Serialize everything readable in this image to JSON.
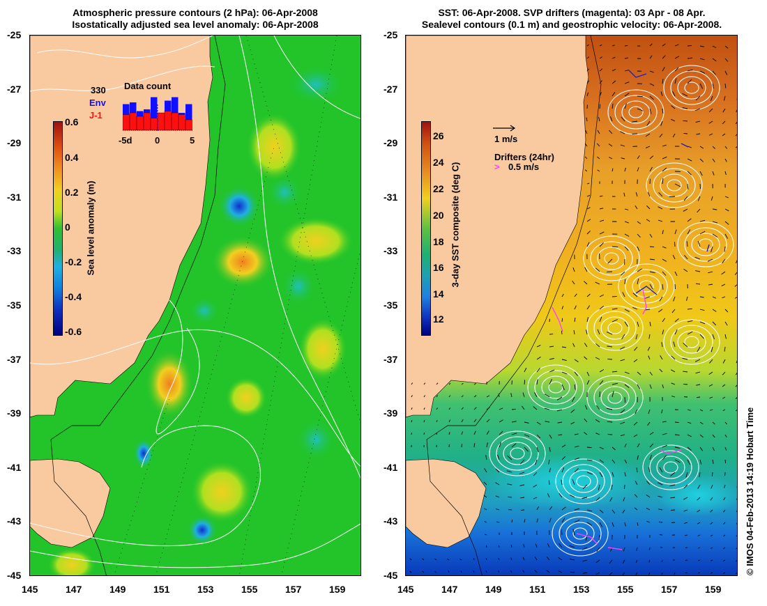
{
  "left_panel": {
    "title_line1": "Atmospheric pressure contours (2 hPa): 06-Apr-2008",
    "title_line2": "Isostatically adjusted sea level anomaly: 06-Apr-2008",
    "colorbar": {
      "label": "Sea level anomaly (m)",
      "ticks": [
        "0.6",
        "0.4",
        "0.2",
        "0",
        "-0.2",
        "-0.4",
        "-0.6"
      ]
    },
    "inset": {
      "count": "330",
      "series1": "Env",
      "series2": "J-1",
      "title": "Data count",
      "xticks": [
        "-5d",
        "0",
        "5"
      ],
      "env_colour": "#1010ff",
      "j1_colour": "#ff1010"
    }
  },
  "right_panel": {
    "title_line1": "SST: 06-Apr-2008. SVP drifters (magenta): 03 Apr - 08 Apr.",
    "title_line2": "Sealevel contours (0.1 m) and geostrophic velocity: 06-Apr-2008.",
    "colorbar": {
      "label": "3-day SST composite (deg C)",
      "ticks": [
        "26",
        "24",
        "22",
        "20",
        "18",
        "16",
        "14",
        "12"
      ]
    },
    "legend": {
      "velocity_scale": "1 m/s",
      "drifters_title": "Drifters (24hr)",
      "drifter_scale": "0.5 m/s",
      "drifter_colour": "#ff40ff"
    }
  },
  "axes": {
    "lat_ticks": [
      "-25",
      "-27",
      "-29",
      "-31",
      "-33",
      "-35",
      "-37",
      "-39",
      "-41",
      "-43",
      "-45"
    ],
    "lon_ticks": [
      "145",
      "147",
      "149",
      "151",
      "153",
      "155",
      "157",
      "159"
    ]
  },
  "credit": "© IMOS 04-Feb-2013 14:19 Hobart Time",
  "colors": {
    "land": "#f9c9a0",
    "sla_ocean": "#22c42a",
    "sst_warm": "#e8a030",
    "sst_mid": "#f0c020",
    "sst_cool": "#30b070",
    "sst_cold": "#1050d0"
  }
}
